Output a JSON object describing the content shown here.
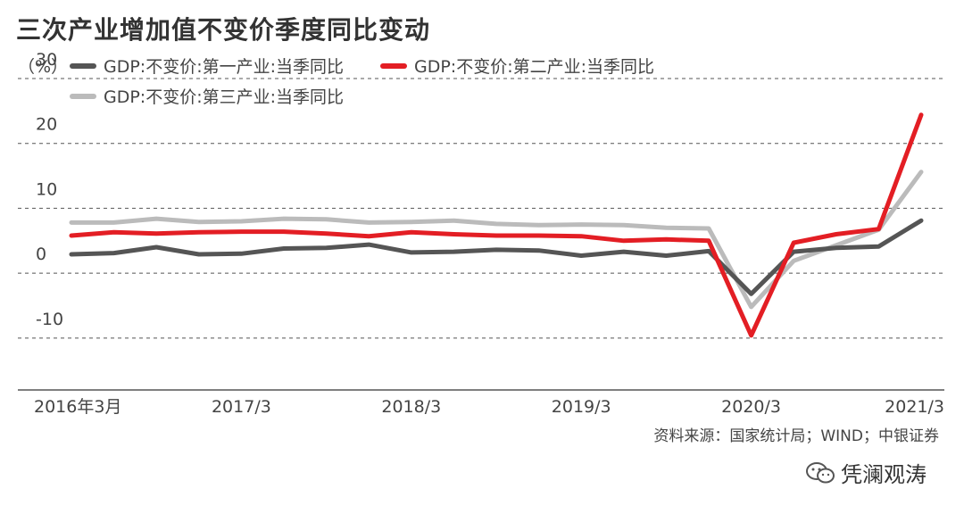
{
  "chart_data": {
    "type": "line",
    "title": "三次产业增加值不变价季度同比变动",
    "unit": "（%）",
    "x_tick_labels": [
      "2016年3月",
      "2017/3",
      "2018/3",
      "2019/3",
      "2020/3",
      "2021/3"
    ],
    "x_tick_index": [
      0,
      4,
      8,
      12,
      16,
      20
    ],
    "y_tick_labels": [
      "30",
      "20",
      "10",
      "0",
      "-10"
    ],
    "ylim": [
      -18,
      30
    ],
    "grid": "horizontal dashed",
    "legend_placement": "top-left",
    "x": [
      "2016Q1",
      "2016Q2",
      "2016Q3",
      "2016Q4",
      "2017Q1",
      "2017Q2",
      "2017Q3",
      "2017Q4",
      "2018Q1",
      "2018Q2",
      "2018Q3",
      "2018Q4",
      "2019Q1",
      "2019Q2",
      "2019Q3",
      "2019Q4",
      "2020Q1",
      "2020Q2",
      "2020Q3",
      "2020Q4",
      "2021Q1"
    ],
    "series": [
      {
        "name": "GDP:不变价:第一产业:当季同比",
        "color": "#555555",
        "values": [
          2.9,
          3.1,
          4.0,
          2.9,
          3.0,
          3.8,
          3.9,
          4.4,
          3.2,
          3.3,
          3.6,
          3.5,
          2.7,
          3.3,
          2.7,
          3.4,
          -3.2,
          3.3,
          3.9,
          4.1,
          8.1
        ]
      },
      {
        "name": "GDP:不变价:第二产业:当季同比",
        "color": "#e31e24",
        "values": [
          5.8,
          6.3,
          6.1,
          6.3,
          6.4,
          6.4,
          6.1,
          5.7,
          6.3,
          6.0,
          5.8,
          5.8,
          5.7,
          5.0,
          5.2,
          5.0,
          -9.6,
          4.7,
          6.0,
          6.8,
          24.4
        ]
      },
      {
        "name": "GDP:不变价:第三产业:当季同比",
        "color": "#bbbbbb",
        "values": [
          7.8,
          7.8,
          8.4,
          7.9,
          8.0,
          8.4,
          8.3,
          7.8,
          7.9,
          8.1,
          7.6,
          7.4,
          7.5,
          7.4,
          7.0,
          6.9,
          -5.2,
          1.9,
          4.3,
          6.7,
          15.6
        ]
      }
    ]
  },
  "source": "资料来源：国家统计局；WIND；中银证券",
  "brand": "凭澜观涛"
}
